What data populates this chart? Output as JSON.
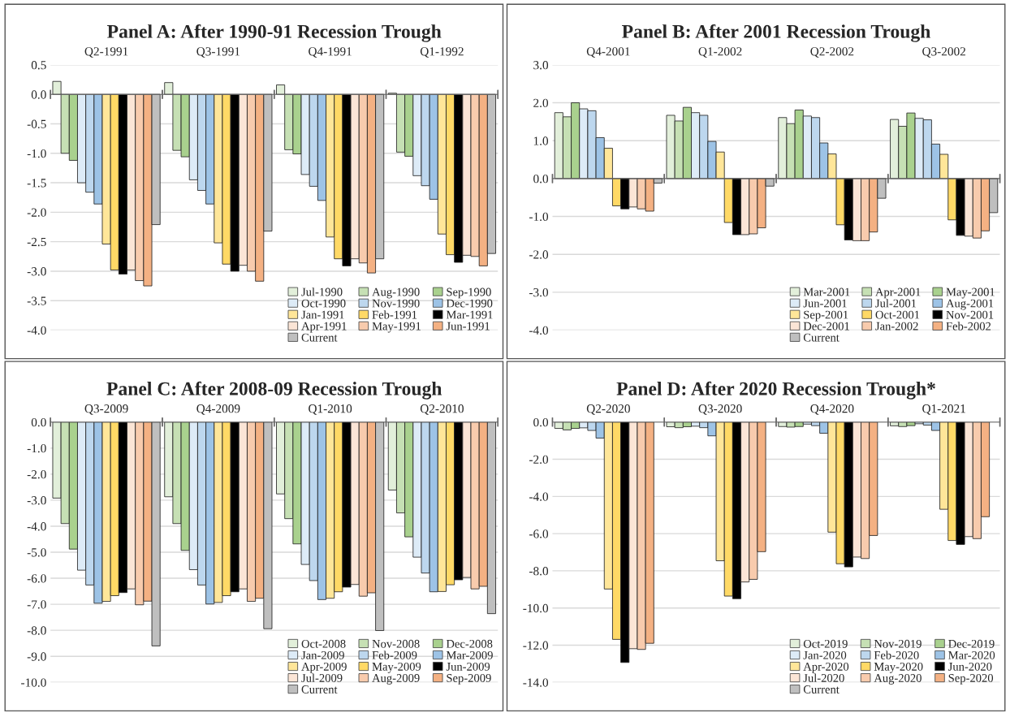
{
  "chart_data": [
    {
      "type": "bar",
      "title": "Panel A: After 1990-91 Recession Trough",
      "categories": [
        "Q2-1991",
        "Q3-1991",
        "Q4-1991",
        "Q1-1992"
      ],
      "ylim": [
        -4.0,
        0.5
      ],
      "yticks": [
        {
          "value": 0.5,
          "label": "0.5"
        },
        {
          "value": 0,
          "label": "0.0"
        },
        {
          "value": -0.5,
          "label": "-0.5"
        },
        {
          "value": -1,
          "label": "-1.0"
        },
        {
          "value": -1.5,
          "label": "-1.5"
        },
        {
          "value": -2,
          "label": "-2.0"
        },
        {
          "value": -2.5,
          "label": "-2.5"
        },
        {
          "value": -3,
          "label": "-3.0"
        },
        {
          "value": -3.5,
          "label": "-3.5"
        },
        {
          "value": -4,
          "label": "-4.0"
        }
      ],
      "grid": "y",
      "legend": "bottom right",
      "series": [
        {
          "name": "Jul-1990",
          "color": "#e2efda",
          "values": [
            0.22,
            0.2,
            0.16,
            0.02
          ]
        },
        {
          "name": "Aug-1990",
          "color": "#c6e0b4",
          "values": [
            -1.0,
            -0.95,
            -0.94,
            -0.98
          ]
        },
        {
          "name": "Sep-1990",
          "color": "#a9d18e",
          "values": [
            -1.12,
            -1.06,
            -1.01,
            -1.05
          ]
        },
        {
          "name": "Oct-1990",
          "color": "#ddebf7",
          "values": [
            -1.5,
            -1.45,
            -1.36,
            -1.38
          ]
        },
        {
          "name": "Nov-1990",
          "color": "#bdd7ee",
          "values": [
            -1.66,
            -1.63,
            -1.56,
            -1.55
          ]
        },
        {
          "name": "Dec-1990",
          "color": "#9dc3e6",
          "values": [
            -1.86,
            -1.86,
            -1.8,
            -1.78
          ]
        },
        {
          "name": "Jan-1991",
          "color": "#ffe699",
          "values": [
            -2.54,
            -2.52,
            -2.42,
            -2.37
          ]
        },
        {
          "name": "Feb-1991",
          "color": "#ffd966",
          "values": [
            -2.98,
            -2.88,
            -2.79,
            -2.72
          ]
        },
        {
          "name": "Mar-1991",
          "color": "#000000",
          "values": [
            -3.05,
            -3.0,
            -2.91,
            -2.85
          ]
        },
        {
          "name": "Apr-1991",
          "color": "#fbe5d6",
          "values": [
            -2.98,
            -2.9,
            -2.79,
            -2.73
          ]
        },
        {
          "name": "May-1991",
          "color": "#f8cbad",
          "values": [
            -3.16,
            -3.0,
            -2.86,
            -2.75
          ]
        },
        {
          "name": "Jun-1991",
          "color": "#f4b183",
          "values": [
            -3.25,
            -3.17,
            -3.03,
            -2.91
          ]
        },
        {
          "name": "Current",
          "color": "#bfbfbf",
          "values": [
            -2.21,
            -2.32,
            -2.79,
            -2.7
          ]
        }
      ]
    },
    {
      "type": "bar",
      "title": "Panel B: After 2001 Recession Trough",
      "categories": [
        "Q4-2001",
        "Q1-2002",
        "Q2-2002",
        "Q3-2002"
      ],
      "ylim": [
        -4.0,
        3.0
      ],
      "yticks": [
        {
          "value": 3,
          "label": "3.0"
        },
        {
          "value": 2,
          "label": "2.0"
        },
        {
          "value": 1,
          "label": "1.0"
        },
        {
          "value": 0,
          "label": "0.0"
        },
        {
          "value": -1,
          "label": "-1.0"
        },
        {
          "value": -2,
          "label": "-2.0"
        },
        {
          "value": -3,
          "label": "-3.0"
        },
        {
          "value": -4,
          "label": "-4.0"
        }
      ],
      "grid": "y",
      "legend": "bottom right",
      "series": [
        {
          "name": "Mar-2001",
          "color": "#e2efda",
          "values": [
            1.74,
            1.67,
            1.61,
            1.56
          ]
        },
        {
          "name": "Apr-2001",
          "color": "#c6e0b4",
          "values": [
            1.63,
            1.52,
            1.45,
            1.38
          ]
        },
        {
          "name": "May-2001",
          "color": "#a9d18e",
          "values": [
            2.0,
            1.88,
            1.81,
            1.73
          ]
        },
        {
          "name": "Jun-2001",
          "color": "#ddebf7",
          "values": [
            1.84,
            1.74,
            1.65,
            1.59
          ]
        },
        {
          "name": "Jul-2001",
          "color": "#bdd7ee",
          "values": [
            1.79,
            1.67,
            1.61,
            1.55
          ]
        },
        {
          "name": "Aug-2001",
          "color": "#9dc3e6",
          "values": [
            1.08,
            0.98,
            0.94,
            0.91
          ]
        },
        {
          "name": "Sep-2001",
          "color": "#ffe699",
          "values": [
            0.8,
            0.7,
            0.65,
            0.64
          ]
        },
        {
          "name": "Oct-2001",
          "color": "#ffd966",
          "values": [
            -0.72,
            -1.16,
            -1.22,
            -1.09
          ]
        },
        {
          "name": "Nov-2001",
          "color": "#000000",
          "values": [
            -0.8,
            -1.48,
            -1.62,
            -1.5
          ]
        },
        {
          "name": "Dec-2001",
          "color": "#fbe5d6",
          "values": [
            -0.75,
            -1.48,
            -1.64,
            -1.52
          ]
        },
        {
          "name": "Jan-2002",
          "color": "#f8cbad",
          "values": [
            -0.8,
            -1.46,
            -1.64,
            -1.57
          ]
        },
        {
          "name": "Feb-2002",
          "color": "#f4b183",
          "values": [
            -0.86,
            -1.3,
            -1.41,
            -1.38
          ]
        },
        {
          "name": "Current",
          "color": "#bfbfbf",
          "values": [
            -0.12,
            -0.2,
            -0.52,
            -0.9
          ]
        }
      ]
    },
    {
      "type": "bar",
      "title": "Panel C: After 2008-09 Recession Trough",
      "categories": [
        "Q3-2009",
        "Q4-2009",
        "Q1-2010",
        "Q2-2010"
      ],
      "ylim": [
        -10.0,
        0.0
      ],
      "yticks": [
        {
          "value": 0,
          "label": "0.0"
        },
        {
          "value": -1,
          "label": "-1.0"
        },
        {
          "value": -2,
          "label": "-2.0"
        },
        {
          "value": -3,
          "label": "-3.0"
        },
        {
          "value": -4,
          "label": "-4.0"
        },
        {
          "value": -5,
          "label": "-5.0"
        },
        {
          "value": -6,
          "label": "-6.0"
        },
        {
          "value": -7,
          "label": "-7.0"
        },
        {
          "value": -8,
          "label": "-8.0"
        },
        {
          "value": -9,
          "label": "-9.0"
        },
        {
          "value": -10,
          "label": "-10.0"
        }
      ],
      "grid": "y",
      "legend": "bottom right",
      "series": [
        {
          "name": "Oct-2008",
          "color": "#e2efda",
          "values": [
            -2.92,
            -2.87,
            -2.76,
            -2.61
          ]
        },
        {
          "name": "Nov-2008",
          "color": "#c6e0b4",
          "values": [
            -3.9,
            -3.9,
            -3.71,
            -3.49
          ]
        },
        {
          "name": "Dec-2008",
          "color": "#a9d18e",
          "values": [
            -4.88,
            -4.93,
            -4.68,
            -4.41
          ]
        },
        {
          "name": "Jan-2009",
          "color": "#ddebf7",
          "values": [
            -5.69,
            -5.67,
            -5.47,
            -5.19
          ]
        },
        {
          "name": "Feb-2009",
          "color": "#bdd7ee",
          "values": [
            -6.26,
            -6.26,
            -6.09,
            -5.8
          ]
        },
        {
          "name": "Mar-2009",
          "color": "#9dc3e6",
          "values": [
            -6.96,
            -6.99,
            -6.82,
            -6.52
          ]
        },
        {
          "name": "Apr-2009",
          "color": "#ffe699",
          "values": [
            -6.89,
            -6.93,
            -6.77,
            -6.51
          ]
        },
        {
          "name": "May-2009",
          "color": "#ffd966",
          "values": [
            -6.67,
            -6.67,
            -6.52,
            -6.25
          ]
        },
        {
          "name": "Jun-2009",
          "color": "#000000",
          "values": [
            -6.55,
            -6.52,
            -6.34,
            -6.06
          ]
        },
        {
          "name": "Jul-2009",
          "color": "#fbe5d6",
          "values": [
            -6.41,
            -6.41,
            -6.24,
            -5.97
          ]
        },
        {
          "name": "Aug-2009",
          "color": "#f8cbad",
          "values": [
            -7.02,
            -6.89,
            -6.69,
            -6.41
          ]
        },
        {
          "name": "Sep-2009",
          "color": "#f4b183",
          "values": [
            -6.88,
            -6.77,
            -6.56,
            -6.31
          ]
        },
        {
          "name": "Current",
          "color": "#bfbfbf",
          "values": [
            -8.6,
            -7.94,
            -8.01,
            -7.36
          ]
        }
      ]
    },
    {
      "type": "bar",
      "title": "Panel D: After 2020 Recession Trough*",
      "categories": [
        "Q2-2020",
        "Q3-2020",
        "Q4-2020",
        "Q1-2021"
      ],
      "ylim": [
        -14.0,
        0.0
      ],
      "yticks": [
        {
          "value": 0,
          "label": "0.0"
        },
        {
          "value": -2,
          "label": "-2.0"
        },
        {
          "value": -4,
          "label": "-4.0"
        },
        {
          "value": -6,
          "label": "-6.0"
        },
        {
          "value": -8,
          "label": "-8.0"
        },
        {
          "value": -10,
          "label": "-10.0"
        },
        {
          "value": -12,
          "label": "-12.0"
        },
        {
          "value": -14,
          "label": "-14.0"
        }
      ],
      "grid": "y",
      "legend": "bottom right",
      "series": [
        {
          "name": "Oct-2019",
          "color": "#e2efda",
          "values": [
            -0.34,
            -0.25,
            -0.24,
            -0.2
          ]
        },
        {
          "name": "Nov-2019",
          "color": "#c6e0b4",
          "values": [
            -0.42,
            -0.3,
            -0.27,
            -0.24
          ]
        },
        {
          "name": "Dec-2019",
          "color": "#a9d18e",
          "values": [
            -0.34,
            -0.25,
            -0.24,
            -0.19
          ]
        },
        {
          "name": "Jan-2020",
          "color": "#ddebf7",
          "values": [
            -0.31,
            -0.22,
            -0.11,
            -0.09
          ]
        },
        {
          "name": "Feb-2020",
          "color": "#bdd7ee",
          "values": [
            -0.45,
            -0.3,
            -0.19,
            -0.16
          ]
        },
        {
          "name": "Mar-2020",
          "color": "#9dc3e6",
          "values": [
            -0.86,
            -0.74,
            -0.6,
            -0.45
          ]
        },
        {
          "name": "Apr-2020",
          "color": "#ffe699",
          "values": [
            -8.98,
            -7.46,
            -5.92,
            -4.69
          ]
        },
        {
          "name": "May-2020",
          "color": "#ffd966",
          "values": [
            -11.69,
            -9.36,
            -7.62,
            -6.37
          ]
        },
        {
          "name": "Jun-2020",
          "color": "#000000",
          "values": [
            -12.93,
            -9.5,
            -7.79,
            -6.58
          ]
        },
        {
          "name": "Jul-2020",
          "color": "#fbe5d6",
          "values": [
            -12.19,
            -8.6,
            -7.26,
            -6.16
          ]
        },
        {
          "name": "Aug-2020",
          "color": "#f8cbad",
          "values": [
            -12.23,
            -8.46,
            -7.34,
            -6.27
          ]
        },
        {
          "name": "Sep-2020",
          "color": "#f4b183",
          "values": [
            -11.9,
            -6.97,
            -6.1,
            -5.09
          ]
        },
        {
          "name": "Current",
          "color": "#bfbfbf",
          "values": [
            null,
            null,
            null,
            null
          ]
        }
      ]
    }
  ]
}
